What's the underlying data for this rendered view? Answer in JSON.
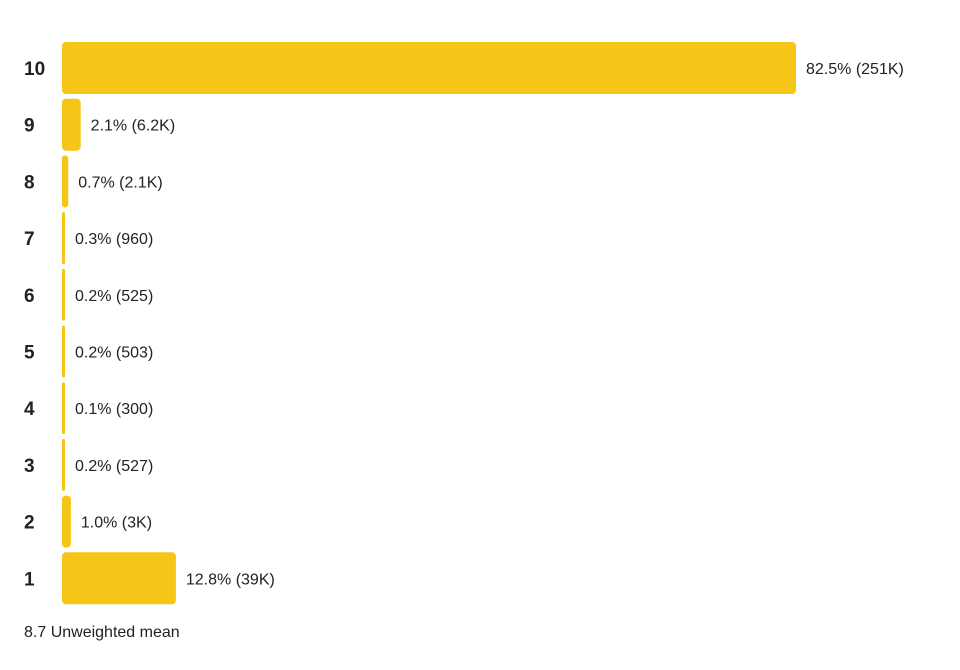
{
  "chart_data": {
    "type": "bar",
    "orientation": "horizontal",
    "categories": [
      "10",
      "9",
      "8",
      "7",
      "6",
      "5",
      "4",
      "3",
      "2",
      "1"
    ],
    "values": [
      82.5,
      2.1,
      0.7,
      0.3,
      0.2,
      0.2,
      0.1,
      0.2,
      1.0,
      12.8
    ],
    "counts": [
      "251K",
      "6.2K",
      "2.1K",
      "960",
      "525",
      "503",
      "300",
      "527",
      "3K",
      "39K"
    ],
    "data_labels": [
      "82.5% (251K)",
      "2.1% (6.2K)",
      "0.7% (2.1K)",
      "0.3% (960)",
      "0.2% (525)",
      "0.2% (503)",
      "0.1% (300)",
      "0.2% (527)",
      "1.0% (3K)",
      "12.8% (39K)"
    ],
    "xlim": [
      0,
      82.5
    ],
    "grid": false,
    "bar_color": "#F5C518"
  },
  "footer": {
    "mean_text": "8.7 Unweighted mean"
  }
}
